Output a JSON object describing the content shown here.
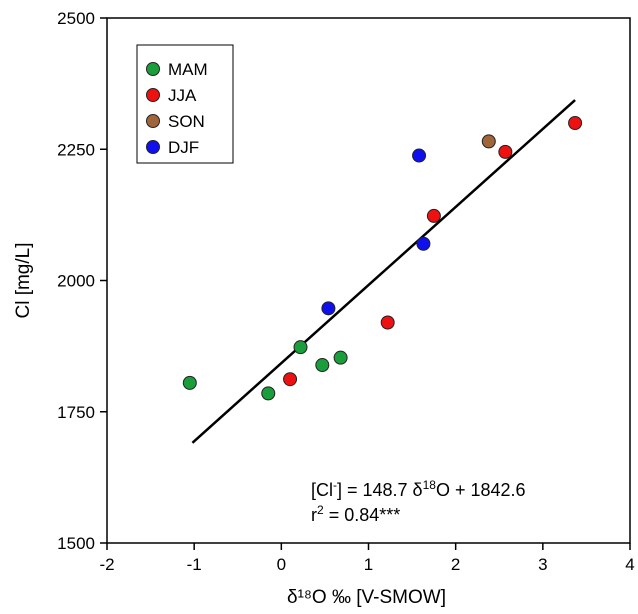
{
  "chart_data": {
    "type": "scatter",
    "xlabel": "δ¹⁸O ‰ [V-SMOW]",
    "ylabel": "Cl [mg/L]",
    "xlim": [
      -2,
      4
    ],
    "ylim": [
      1500,
      2500
    ],
    "xticks": [
      -2,
      -1,
      0,
      1,
      2,
      3,
      4
    ],
    "yticks": [
      1500,
      1750,
      2000,
      2250,
      2500
    ],
    "grid": false,
    "legend_position": "top-left",
    "series": [
      {
        "name": "MAM",
        "color": "#1a9e3c",
        "points": [
          {
            "x": -1.05,
            "y": 1805
          },
          {
            "x": -0.15,
            "y": 1785
          },
          {
            "x": 0.22,
            "y": 1873
          },
          {
            "x": 0.47,
            "y": 1839
          },
          {
            "x": 0.68,
            "y": 1853
          }
        ]
      },
      {
        "name": "JJA",
        "color": "#ee1111",
        "points": [
          {
            "x": 0.1,
            "y": 1812
          },
          {
            "x": 1.22,
            "y": 1920
          },
          {
            "x": 1.75,
            "y": 2123
          },
          {
            "x": 2.57,
            "y": 2245
          },
          {
            "x": 3.37,
            "y": 2300
          }
        ]
      },
      {
        "name": "SON",
        "color": "#a0663a",
        "points": [
          {
            "x": 2.38,
            "y": 2265
          }
        ]
      },
      {
        "name": "DJF",
        "color": "#1010ee",
        "points": [
          {
            "x": 1.58,
            "y": 2238
          },
          {
            "x": 1.63,
            "y": 2070
          },
          {
            "x": 0.54,
            "y": 1947
          }
        ]
      }
    ],
    "regression": {
      "x_start": -1.02,
      "x_end": 3.37,
      "slope": 148.7,
      "intercept": 1842.6
    },
    "annotations": {
      "equation": {
        "lhs_prefix": "[Cl",
        "lhs_sup": "-",
        "lhs_suffix": "] = 148.7 δ",
        "iso_sup": "18",
        "rhs": "O + 1842.6"
      },
      "r2": {
        "prefix": "r",
        "sup": "2",
        "rest": " = 0.84***"
      }
    }
  }
}
